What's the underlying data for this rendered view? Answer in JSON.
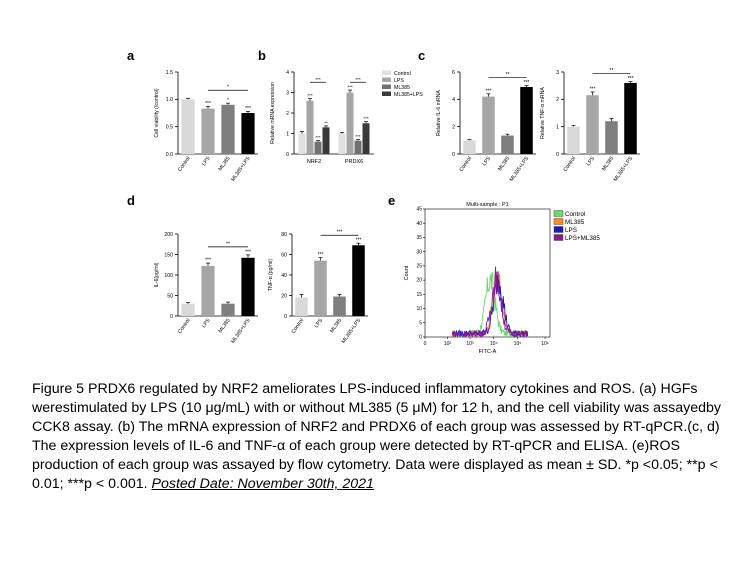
{
  "panels": {
    "a": "a",
    "b": "b",
    "c": "c",
    "d": "d",
    "e": "e"
  },
  "chart_data": [
    {
      "panel": "a",
      "type": "bar",
      "ylabel": "Cell viability (/control)",
      "categories": [
        "Control",
        "LPS",
        "ML385",
        "ML385+LPS"
      ],
      "values": [
        1.0,
        0.83,
        0.9,
        0.75
      ],
      "errors": [
        0.02,
        0.04,
        0.03,
        0.03
      ],
      "colors": [
        "#d9d9d9",
        "#a6a6a6",
        "#7f7f7f",
        "#000000"
      ],
      "ylim": [
        0,
        1.5
      ],
      "yticks": [
        "0.0",
        "0.5",
        "1.0",
        "1.5"
      ],
      "stars": [
        "",
        "***",
        "*",
        "***"
      ],
      "brackets": [
        {
          "from": 1,
          "to": 3,
          "label": "*"
        }
      ]
    },
    {
      "panel": "b",
      "type": "bar",
      "ylabel": "Relative  mRNA expression",
      "groups": [
        "NRF2",
        "PRDX6"
      ],
      "series": [
        {
          "name": "Control",
          "values": [
            1.0,
            1.0
          ],
          "errors": [
            0.1,
            0.05
          ],
          "color": "#e0e0e0"
        },
        {
          "name": "LPS",
          "values": [
            2.6,
            3.0
          ],
          "errors": [
            0.1,
            0.12
          ],
          "color": "#a6a6a6"
        },
        {
          "name": "ML385",
          "values": [
            0.6,
            0.65
          ],
          "errors": [
            0.05,
            0.05
          ],
          "color": "#707070"
        },
        {
          "name": "ML385+LPS",
          "values": [
            1.3,
            1.5
          ],
          "errors": [
            0.07,
            0.08
          ],
          "color": "#3a3a3a"
        }
      ],
      "stars": [
        [
          "",
          "***",
          "***",
          "**"
        ],
        [
          "",
          "***",
          "***",
          "***"
        ]
      ],
      "ylim": [
        0,
        4
      ],
      "yticks": [
        "0",
        "1",
        "2",
        "3",
        "4"
      ],
      "brackets": [
        {
          "group": 0,
          "from": 1,
          "to": 3,
          "label": "***"
        },
        {
          "group": 1,
          "from": 1,
          "to": 3,
          "label": "***"
        }
      ]
    },
    {
      "panel": "c1",
      "type": "bar",
      "ylabel": "Relative IL-6 mRNA",
      "categories": [
        "Control",
        "LPS",
        "ML385",
        "ML385+LPS"
      ],
      "values": [
        1.0,
        4.2,
        1.35,
        4.9
      ],
      "errors": [
        0.05,
        0.2,
        0.1,
        0.1
      ],
      "colors": [
        "#d9d9d9",
        "#a6a6a6",
        "#7f7f7f",
        "#000000"
      ],
      "ylim": [
        0,
        6
      ],
      "yticks": [
        "0",
        "2",
        "4",
        "6"
      ],
      "stars": [
        "",
        "***",
        "",
        "***"
      ],
      "brackets": [
        {
          "from": 1,
          "to": 3,
          "label": "**"
        }
      ]
    },
    {
      "panel": "c2",
      "type": "bar",
      "ylabel": "Relative TNF-α mRNA",
      "categories": [
        "Control",
        "LPS",
        "ML385",
        "ML385+LPS"
      ],
      "values": [
        1.0,
        2.15,
        1.2,
        2.6
      ],
      "errors": [
        0.05,
        0.12,
        0.1,
        0.05
      ],
      "colors": [
        "#d9d9d9",
        "#a6a6a6",
        "#7f7f7f",
        "#000000"
      ],
      "ylim": [
        0,
        3
      ],
      "yticks": [
        "0",
        "1",
        "2",
        "3"
      ],
      "stars": [
        "",
        "***",
        "",
        "***"
      ],
      "brackets": [
        {
          "from": 1,
          "to": 3,
          "label": "**"
        }
      ]
    },
    {
      "panel": "d1",
      "type": "bar",
      "ylabel": "IL-6(pg/ml)",
      "categories": [
        "Control",
        "LPS",
        "ML385",
        "ML385+LPS"
      ],
      "values": [
        30,
        122,
        30,
        142
      ],
      "errors": [
        3,
        7,
        4,
        7
      ],
      "colors": [
        "#d9d9d9",
        "#a6a6a6",
        "#7f7f7f",
        "#000000"
      ],
      "ylim": [
        0,
        200
      ],
      "yticks": [
        "0",
        "50",
        "100",
        "150",
        "200"
      ],
      "stars": [
        "",
        "***",
        "",
        "***"
      ],
      "brackets": [
        {
          "from": 1,
          "to": 3,
          "label": "**"
        }
      ]
    },
    {
      "panel": "d2",
      "type": "bar",
      "ylabel": "TNF-α (pg/ml)",
      "categories": [
        "Control",
        "LPS",
        "ML385",
        "ML385+LPS"
      ],
      "values": [
        18,
        54,
        19,
        69
      ],
      "errors": [
        3,
        3,
        2,
        2
      ],
      "colors": [
        "#d9d9d9",
        "#a6a6a6",
        "#7f7f7f",
        "#000000"
      ],
      "ylim": [
        0,
        80
      ],
      "yticks": [
        "0",
        "20",
        "40",
        "60",
        "80"
      ],
      "stars": [
        "",
        "***",
        "",
        "***"
      ],
      "brackets": [
        {
          "from": 1,
          "to": 3,
          "label": "***"
        }
      ]
    },
    {
      "panel": "e",
      "type": "line",
      "title": "Multi-sample : P1",
      "xlabel": "FITC-A",
      "ylabel": "Count",
      "xticks": [
        "0",
        "10²",
        "10³",
        "10⁴",
        "10⁵",
        "10⁶"
      ],
      "yticks": [
        "0",
        "5",
        "10",
        "15",
        "20",
        "25",
        "30",
        "35",
        "40",
        "45"
      ],
      "ylim": [
        0,
        45
      ],
      "series": [
        {
          "name": "Control",
          "color": "#66dd66",
          "peak": 3.8
        },
        {
          "name": "ML385",
          "color": "#ff8c1a",
          "peak": 4.1
        },
        {
          "name": "LPS",
          "color": "#1a1acc",
          "peak": 4.15
        },
        {
          "name": "LPS+ML385",
          "color": "#8a1a9a",
          "peak": 4.05
        }
      ]
    }
  ],
  "caption": {
    "text": "Figure 5 PRDX6 regulated by NRF2 ameliorates LPS-induced inflammatory cytokines and ROS. (a) HGFs werestimulated by LPS (10 μg/mL) with or without ML385 (5 μM) for 12 h, and the cell viability was assayedby CCK8 assay. (b) The mRNA expression of NRF2 and PRDX6 of each group was assessed by RT-qPCR.(c, d) The expression levels of IL-6 and TNF-α of each group were detected by RT-qPCR and ELISA. (e)ROS production of each group was assayed by flow cytometry. Data were displayed as mean ± SD. *p <0.05; **p < 0.01; ***p < 0.001. ",
    "posted": "Posted Date: November 30th, 2021"
  }
}
